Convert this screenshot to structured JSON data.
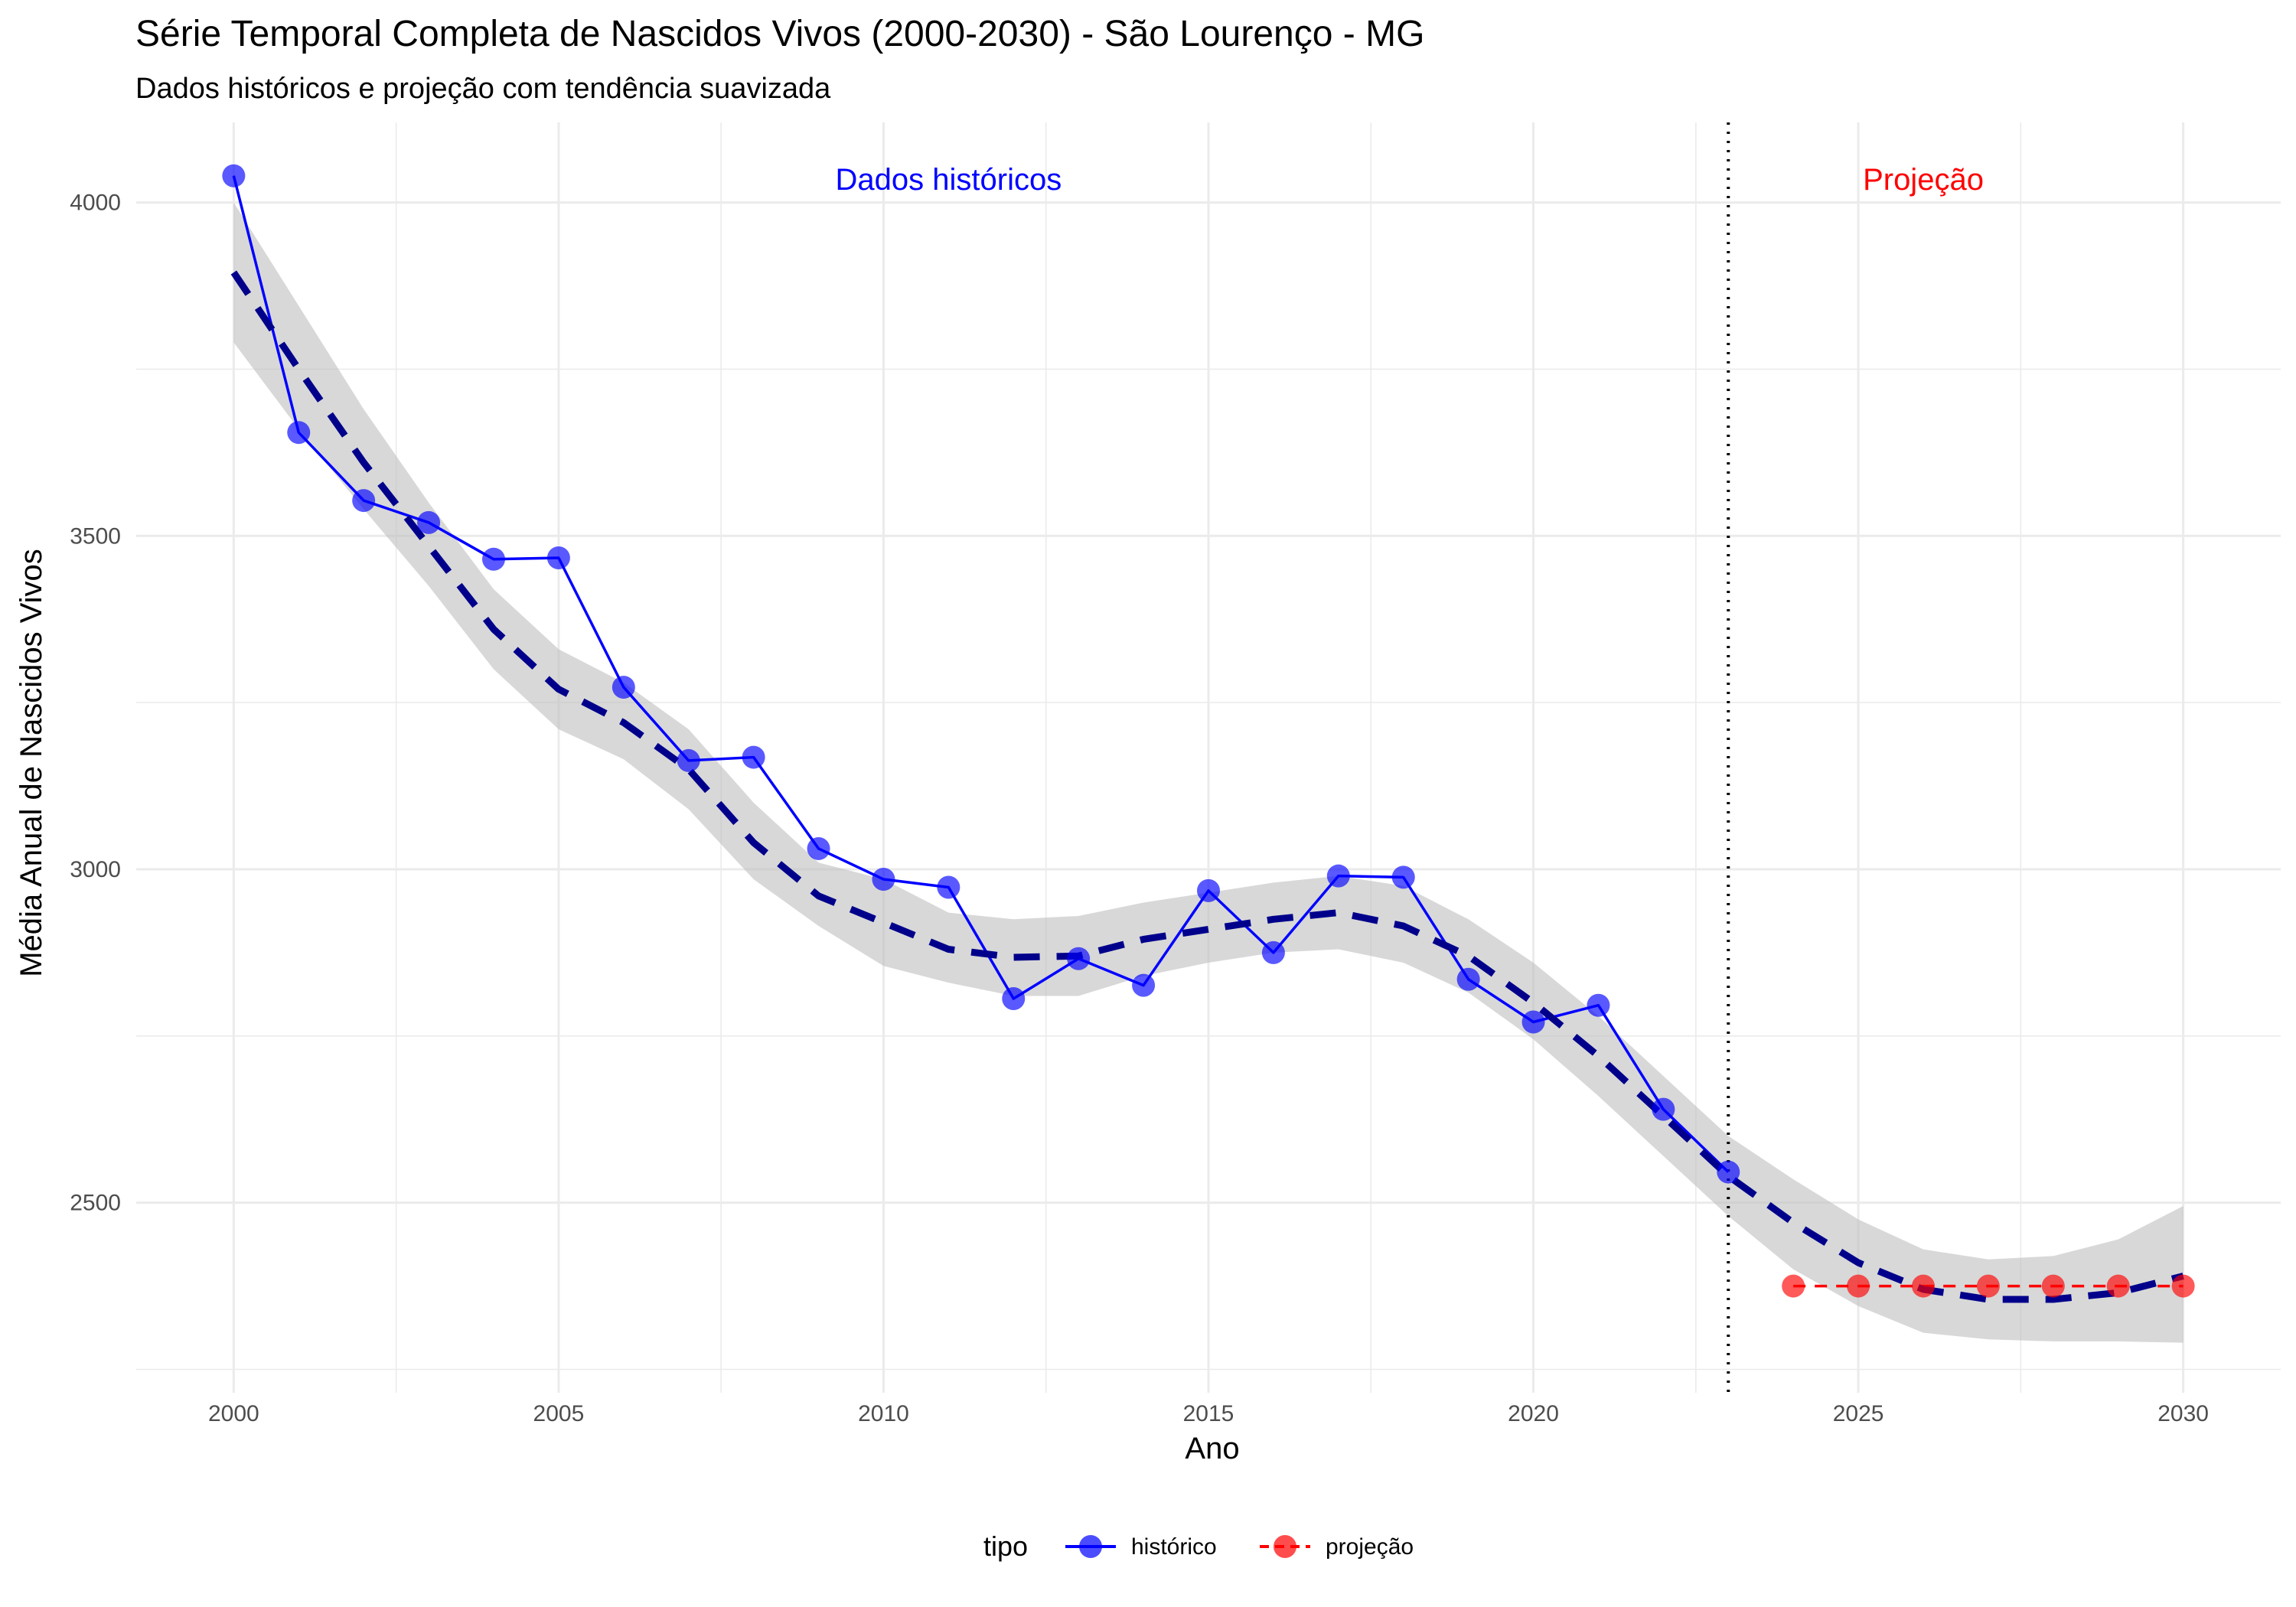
{
  "chart_data": {
    "type": "line",
    "title": "Série Temporal Completa de Nascidos Vivos (2000-2030) -  São Lourenço - MG",
    "subtitle": "Dados históricos e projeção com tendência suavizada",
    "xlabel": "Ano",
    "ylabel": "Média Anual de Nascidos Vivos",
    "xlim": [
      1998.5,
      2031.5
    ],
    "ylim": [
      2215,
      4120
    ],
    "x_ticks": [
      2000,
      2005,
      2010,
      2015,
      2020,
      2025,
      2030
    ],
    "x_tick_labels": [
      "2000",
      "2005",
      "2010",
      "2015",
      "2020",
      "2025",
      "2030"
    ],
    "y_ticks": [
      2500,
      3000,
      3500,
      4000
    ],
    "y_tick_labels": [
      "2500",
      "3000",
      "3500",
      "4000"
    ],
    "grid": true,
    "series": [
      {
        "name": "histórico",
        "color": "#0000ff",
        "line_style": "solid",
        "x": [
          2000,
          2001,
          2002,
          2003,
          2004,
          2005,
          2006,
          2007,
          2008,
          2009,
          2010,
          2011,
          2012,
          2013,
          2014,
          2015,
          2016,
          2017,
          2018,
          2019,
          2020,
          2021,
          2022,
          2023
        ],
        "values": [
          4040,
          3655,
          3553,
          3520,
          3465,
          3467,
          3273,
          3163,
          3168,
          3031,
          2985,
          2973,
          2806,
          2866,
          2826,
          2968,
          2875,
          2990,
          2988,
          2835,
          2771,
          2796,
          2640,
          2546
        ]
      },
      {
        "name": "projeção",
        "color": "#ff0000",
        "line_style": "dashed",
        "x": [
          2024,
          2025,
          2026,
          2027,
          2028,
          2029,
          2030
        ],
        "values": [
          2375,
          2375,
          2375,
          2375,
          2375,
          2375,
          2375
        ]
      }
    ],
    "trend": {
      "color": "#00008b",
      "line_style": "dashed",
      "x": [
        2000,
        2001,
        2002,
        2003,
        2004,
        2005,
        2006,
        2007,
        2008,
        2009,
        2010,
        2011,
        2012,
        2013,
        2014,
        2015,
        2016,
        2017,
        2018,
        2019,
        2020,
        2021,
        2022,
        2023,
        2024,
        2025,
        2026,
        2027,
        2028,
        2029,
        2030
      ],
      "values": [
        3895,
        3750,
        3610,
        3485,
        3360,
        3270,
        3220,
        3150,
        3040,
        2960,
        2920,
        2880,
        2868,
        2870,
        2895,
        2910,
        2925,
        2935,
        2915,
        2870,
        2800,
        2720,
        2630,
        2540,
        2470,
        2410,
        2370,
        2355,
        2355,
        2365,
        2390
      ],
      "lower": [
        3790,
        3660,
        3540,
        3425,
        3300,
        3210,
        3165,
        3090,
        2985,
        2915,
        2855,
        2830,
        2810,
        2810,
        2840,
        2860,
        2875,
        2880,
        2860,
        2815,
        2745,
        2660,
        2570,
        2480,
        2400,
        2345,
        2305,
        2295,
        2292,
        2292,
        2290
      ],
      "upper": [
        4000,
        3845,
        3690,
        3550,
        3420,
        3330,
        3280,
        3210,
        3100,
        3010,
        2985,
        2935,
        2925,
        2930,
        2950,
        2965,
        2980,
        2990,
        2975,
        2925,
        2860,
        2780,
        2690,
        2600,
        2535,
        2475,
        2430,
        2415,
        2420,
        2445,
        2495
      ]
    },
    "vline_x": 2023,
    "annotations": [
      {
        "text": "Dados históricos",
        "x": 2011,
        "y": 4035,
        "color": "#0000ff"
      },
      {
        "text": "Projeção",
        "x": 2026,
        "y": 4035,
        "color": "#ff0000"
      }
    ],
    "legend": {
      "title": "tipo",
      "position": "bottom",
      "items": [
        "histórico",
        "projeção"
      ]
    }
  }
}
